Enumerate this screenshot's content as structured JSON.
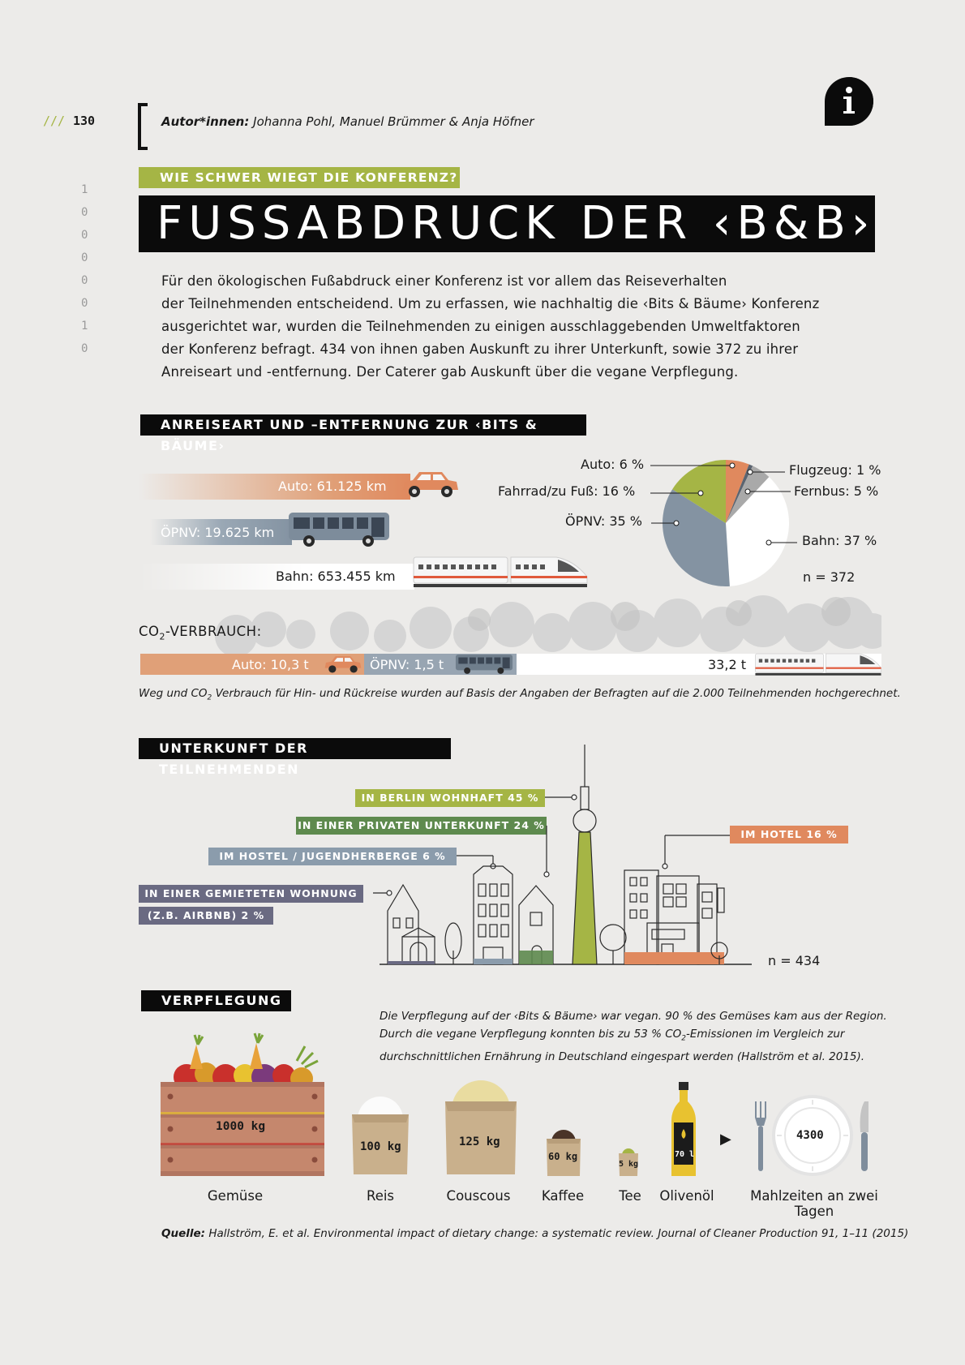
{
  "header": {
    "page_marker": "///",
    "page_number": "130",
    "authors_label": "Autor*innen:",
    "authors": "Johanna Pohl, Manuel Brümmer & Anja Höfner",
    "info_icon": "info-icon"
  },
  "binary_digits": [
    "1",
    "0",
    "0",
    "0",
    "0",
    "0",
    "1",
    "0"
  ],
  "kicker": "WIE SCHWER WIEGT DIE KONFERENZ?",
  "title": "FUSSABDRUCK DER ‹B&B›",
  "intro": [
    "Für den ökologischen Fußabdruck einer Konferenz ist vor allem das Reiseverhalten",
    "der Teilnehmenden entscheidend. Um zu erfassen, wie nachhaltig die ‹Bits & Bäume› Konferenz",
    "ausgerichtet war, wurden die Teilnehmenden zu einigen ausschlaggebenden Umweltfaktoren",
    "der Konferenz befragt. 434 von ihnen gaben Auskunft zu ihrer Unterkunft, sowie 372 zu ihrer",
    "Anreiseart und -entfernung.  Der Caterer gab Auskunft über die vegane Verpflegung."
  ],
  "travel": {
    "heading": "ANREISEART UND –ENTFERNUNG ZUR ‹BITS & BÄUME›",
    "distances": [
      {
        "label": "Auto: 61.125 km",
        "icon": "car-icon",
        "color": "#e0895e"
      },
      {
        "label": "ÖPNV: 19.625 km",
        "icon": "bus-icon",
        "color": "#8493a2"
      },
      {
        "label": "Bahn: 653.455 km",
        "icon": "train-icon",
        "color": "#ffffff"
      }
    ],
    "pie_labels": [
      "Auto: 6 %",
      "Fahrrad/zu Fuß: 16 %",
      "ÖPNV: 35 %",
      "Flugzeug: 1 %",
      "Fernbus: 5 %",
      "Bahn: 37 %"
    ],
    "pie_n": "n = 372",
    "co2_label_prefix": "CO",
    "co2_label_sub": "2",
    "co2_label_suffix": "-VERBRAUCH:",
    "co2": [
      {
        "label": "Auto: 10,3 t",
        "color": "#e0a078"
      },
      {
        "label": "ÖPNV: 1,5 t",
        "color": "#98a5b2"
      },
      {
        "label": "33,2 t",
        "color": "#ffffff"
      }
    ],
    "note_a": "Weg und CO",
    "note_sub": "2",
    "note_b": " Verbrauch für Hin- und Rückreise wurden auf Basis der Angaben der Befragten auf die 2.000 Teilnehmenden hochgerechnet."
  },
  "chart_data": {
    "type": "pie",
    "title": "",
    "n": 372,
    "slices": [
      {
        "label": "Auto",
        "value": 6,
        "color": "#e0895e"
      },
      {
        "label": "Flugzeug",
        "value": 1,
        "color": "#5b6470"
      },
      {
        "label": "Fernbus",
        "value": 5,
        "color": "#a9a9a9"
      },
      {
        "label": "Bahn",
        "value": 37,
        "color": "#ffffff"
      },
      {
        "label": "ÖPNV",
        "value": 35,
        "color": "#8493a2"
      },
      {
        "label": "Fahrrad/zu Fuß",
        "value": 16,
        "color": "#a5b545"
      }
    ]
  },
  "lodging": {
    "heading": "UNTERKUNFT DER TEILNEHMENDEN",
    "tags": [
      {
        "label": "IN BERLIN WOHNHAFT 45 %",
        "color": "#a5b545"
      },
      {
        "label": "IN EINER PRIVATEN UNTERKUNFT 24 %",
        "color": "#5e8a4e"
      },
      {
        "label": "IM HOSTEL / JUGENDHERBERGE 6 %",
        "color": "#8b9cac"
      },
      {
        "label": "IN EINER GEMIETETEN WOHNUNG",
        "color": "#6a6a82"
      },
      {
        "label": "(Z.B. AIRBNB) 2 %",
        "color": "#6a6a82"
      },
      {
        "label": "IM HOTEL 16 %",
        "color": "#e0895e"
      }
    ],
    "n": "n = 434"
  },
  "food": {
    "heading": "VERPFLEGUNG",
    "text_1": "Die Verpflegung auf der ‹Bits & Bäume› war vegan. 90 % des Gemüses kam aus der Region.",
    "text_2a": "Durch die vegane Verpflegung konnten bis zu 53 % CO",
    "text_2sub": "2",
    "text_2b": "-Emissionen im Vergleich zur",
    "text_3": "durchschnittlichen Ernährung in Deutschland eingespart werden (Hallström et al. 2015).",
    "items": [
      {
        "name": "Gemüse",
        "amount": "1000 kg"
      },
      {
        "name": "Reis",
        "amount": "100 kg"
      },
      {
        "name": "Couscous",
        "amount": "125 kg"
      },
      {
        "name": "Kaffee",
        "amount": "60 kg"
      },
      {
        "name": "Tee",
        "amount": "5 kg"
      },
      {
        "name": "Olivenöl",
        "amount": "70 l"
      }
    ],
    "arrow": "▶",
    "meals_amount": "4300",
    "meals_label": "Mahlzeiten an zwei Tagen"
  },
  "source": {
    "label": "Quelle:",
    "text": "Hallström, E. et al. Environmental impact of dietary change: a systematic review. Journal of Cleaner Production 91, 1–11 (2015)"
  }
}
